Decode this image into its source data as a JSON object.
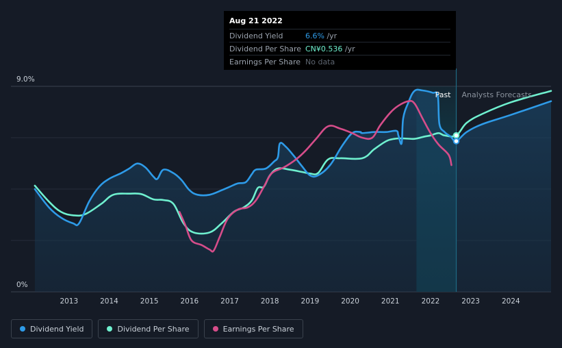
{
  "tooltip": {
    "date": "Aug 21 2022",
    "rows": [
      {
        "label": "Dividend Yield",
        "value": "6.6%",
        "unit": " /yr"
      },
      {
        "label": "Dividend Per Share",
        "value": "CN¥0.536",
        "unit": " /yr"
      },
      {
        "label": "Earnings Per Share",
        "value": "No data",
        "unit": ""
      }
    ]
  },
  "legend": {
    "items": [
      {
        "label": "Dividend Yield",
        "color": "#2e9be8"
      },
      {
        "label": "Dividend Per Share",
        "color": "#6ff0cf"
      },
      {
        "label": "Earnings Per Share",
        "color": "#d64d8a"
      }
    ]
  },
  "colors": {
    "background": "#151b26",
    "past_band": "#113a48",
    "dividend_yield": "#2e9be8",
    "dividend_per_share": "#6ff0cf",
    "earnings_per_share": "#d64d8a"
  },
  "chart_data": {
    "type": "line",
    "y_tick_labels": [
      "9.0%",
      "0%"
    ],
    "ylim": [
      0,
      9.0
    ],
    "xlim": [
      2012.1,
      2025.0
    ],
    "x_tick_labels": [
      "2013",
      "2014",
      "2015",
      "2016",
      "2017",
      "2018",
      "2019",
      "2020",
      "2021",
      "2022",
      "2023",
      "2024"
    ],
    "region_labels": {
      "past": "Past",
      "forecast": "Analysts Forecasts"
    },
    "past_region": [
      2021.65,
      2022.64
    ],
    "marker_x": 2022.64,
    "series": [
      {
        "name": "Dividend Yield",
        "key": "dividend_yield",
        "points": [
          [
            2012.15,
            4.5
          ],
          [
            2012.5,
            3.7
          ],
          [
            2012.8,
            3.25
          ],
          [
            2013.1,
            3.0
          ],
          [
            2013.25,
            3.0
          ],
          [
            2013.5,
            3.95
          ],
          [
            2013.75,
            4.6
          ],
          [
            2014.0,
            4.95
          ],
          [
            2014.3,
            5.2
          ],
          [
            2014.5,
            5.4
          ],
          [
            2014.7,
            5.62
          ],
          [
            2014.9,
            5.45
          ],
          [
            2015.1,
            5.05
          ],
          [
            2015.2,
            4.95
          ],
          [
            2015.35,
            5.35
          ],
          [
            2015.6,
            5.2
          ],
          [
            2015.8,
            4.9
          ],
          [
            2016.0,
            4.45
          ],
          [
            2016.2,
            4.25
          ],
          [
            2016.5,
            4.25
          ],
          [
            2016.8,
            4.45
          ],
          [
            2017.0,
            4.6
          ],
          [
            2017.2,
            4.75
          ],
          [
            2017.4,
            4.8
          ],
          [
            2017.55,
            5.15
          ],
          [
            2017.65,
            5.35
          ],
          [
            2017.9,
            5.4
          ],
          [
            2018.1,
            5.7
          ],
          [
            2018.2,
            5.9
          ],
          [
            2018.25,
            6.5
          ],
          [
            2018.4,
            6.35
          ],
          [
            2018.6,
            5.95
          ],
          [
            2018.8,
            5.5
          ],
          [
            2019.0,
            5.1
          ],
          [
            2019.2,
            5.1
          ],
          [
            2019.5,
            5.55
          ],
          [
            2019.8,
            6.4
          ],
          [
            2020.05,
            6.95
          ],
          [
            2020.25,
            7.0
          ],
          [
            2020.3,
            6.95
          ],
          [
            2020.6,
            7.0
          ],
          [
            2020.9,
            7.0
          ],
          [
            2021.15,
            7.05
          ],
          [
            2021.2,
            6.85
          ],
          [
            2021.28,
            6.5
          ],
          [
            2021.32,
            7.6
          ],
          [
            2021.45,
            8.3
          ],
          [
            2021.6,
            8.8
          ],
          [
            2021.8,
            8.82
          ],
          [
            2022.05,
            8.72
          ],
          [
            2022.18,
            8.6
          ],
          [
            2022.22,
            7.35
          ],
          [
            2022.35,
            7.0
          ],
          [
            2022.5,
            6.8
          ],
          [
            2022.64,
            6.6
          ],
          [
            2022.9,
            7.0
          ],
          [
            2023.3,
            7.35
          ],
          [
            2024.0,
            7.75
          ],
          [
            2025.0,
            8.35
          ]
        ]
      },
      {
        "name": "Dividend Per Share",
        "key": "dividend_per_share",
        "points": [
          [
            2012.15,
            4.65
          ],
          [
            2012.5,
            3.95
          ],
          [
            2012.8,
            3.5
          ],
          [
            2013.1,
            3.35
          ],
          [
            2013.4,
            3.4
          ],
          [
            2013.8,
            3.85
          ],
          [
            2014.1,
            4.25
          ],
          [
            2014.5,
            4.3
          ],
          [
            2014.8,
            4.28
          ],
          [
            2015.1,
            4.05
          ],
          [
            2015.35,
            4.02
          ],
          [
            2015.6,
            3.85
          ],
          [
            2015.85,
            3.0
          ],
          [
            2016.1,
            2.6
          ],
          [
            2016.5,
            2.6
          ],
          [
            2016.8,
            3.0
          ],
          [
            2017.1,
            3.5
          ],
          [
            2017.35,
            3.7
          ],
          [
            2017.55,
            4.0
          ],
          [
            2017.7,
            4.55
          ],
          [
            2017.85,
            4.6
          ],
          [
            2018.0,
            5.1
          ],
          [
            2018.2,
            5.4
          ],
          [
            2018.5,
            5.35
          ],
          [
            2018.8,
            5.25
          ],
          [
            2019.0,
            5.18
          ],
          [
            2019.2,
            5.2
          ],
          [
            2019.45,
            5.8
          ],
          [
            2019.75,
            5.85
          ],
          [
            2020.3,
            5.85
          ],
          [
            2020.6,
            6.25
          ],
          [
            2020.9,
            6.6
          ],
          [
            2021.1,
            6.7
          ],
          [
            2021.3,
            6.72
          ],
          [
            2021.6,
            6.7
          ],
          [
            2021.85,
            6.8
          ],
          [
            2022.0,
            6.85
          ],
          [
            2022.2,
            6.95
          ],
          [
            2022.35,
            6.85
          ],
          [
            2022.64,
            6.85
          ],
          [
            2022.9,
            7.4
          ],
          [
            2023.3,
            7.8
          ],
          [
            2024.0,
            8.3
          ],
          [
            2025.0,
            8.8
          ]
        ]
      },
      {
        "name": "Earnings Per Share",
        "key": "earnings_per_share",
        "points": [
          [
            2015.75,
            3.5
          ],
          [
            2015.9,
            2.9
          ],
          [
            2016.05,
            2.25
          ],
          [
            2016.3,
            2.05
          ],
          [
            2016.5,
            1.85
          ],
          [
            2016.6,
            1.8
          ],
          [
            2016.75,
            2.4
          ],
          [
            2016.95,
            3.2
          ],
          [
            2017.2,
            3.6
          ],
          [
            2017.45,
            3.7
          ],
          [
            2017.65,
            4.0
          ],
          [
            2017.85,
            4.6
          ],
          [
            2018.05,
            5.2
          ],
          [
            2018.35,
            5.45
          ],
          [
            2018.65,
            5.8
          ],
          [
            2018.9,
            6.2
          ],
          [
            2019.15,
            6.7
          ],
          [
            2019.45,
            7.25
          ],
          [
            2019.75,
            7.15
          ],
          [
            2020.05,
            6.95
          ],
          [
            2020.3,
            6.75
          ],
          [
            2020.55,
            6.75
          ],
          [
            2020.75,
            7.3
          ],
          [
            2021.0,
            7.85
          ],
          [
            2021.2,
            8.15
          ],
          [
            2021.45,
            8.35
          ],
          [
            2021.6,
            8.25
          ],
          [
            2021.8,
            7.6
          ],
          [
            2022.0,
            6.95
          ],
          [
            2022.2,
            6.45
          ],
          [
            2022.45,
            6.0
          ],
          [
            2022.52,
            5.55
          ]
        ]
      }
    ]
  }
}
